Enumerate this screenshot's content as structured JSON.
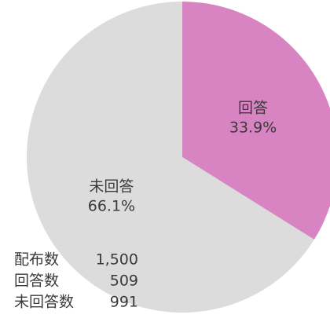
{
  "chart_data": {
    "type": "pie",
    "categories": [
      "回答",
      "未回答"
    ],
    "values": [
      33.9,
      66.1
    ],
    "value_labels": [
      "33.9%",
      "66.1%"
    ],
    "colors": [
      "#d884c2",
      "#dcdcdc"
    ],
    "counts": [
      {
        "label": "配布数",
        "value": "1,500"
      },
      {
        "label": "回答数",
        "value": "509"
      },
      {
        "label": "未回答数",
        "value": "991"
      }
    ]
  }
}
